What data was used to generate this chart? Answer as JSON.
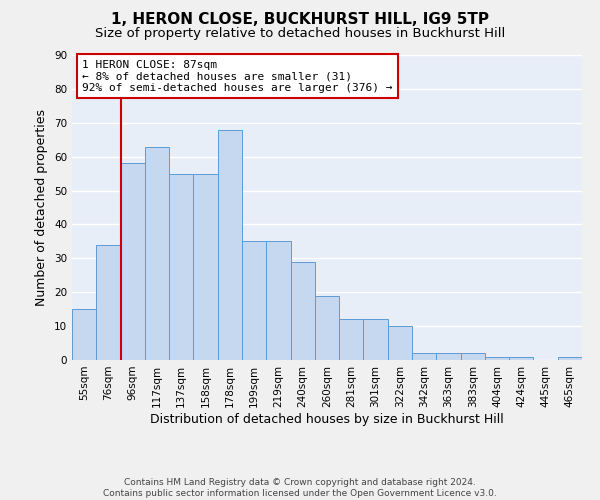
{
  "title1": "1, HERON CLOSE, BUCKHURST HILL, IG9 5TP",
  "title2": "Size of property relative to detached houses in Buckhurst Hill",
  "xlabel": "Distribution of detached houses by size in Buckhurst Hill",
  "ylabel": "Number of detached properties",
  "categories": [
    "55sqm",
    "76sqm",
    "96sqm",
    "117sqm",
    "137sqm",
    "158sqm",
    "178sqm",
    "199sqm",
    "219sqm",
    "240sqm",
    "260sqm",
    "281sqm",
    "301sqm",
    "322sqm",
    "342sqm",
    "363sqm",
    "383sqm",
    "404sqm",
    "424sqm",
    "445sqm",
    "465sqm"
  ],
  "values": [
    15,
    34,
    58,
    63,
    55,
    55,
    68,
    35,
    35,
    29,
    19,
    12,
    12,
    10,
    2,
    2,
    2,
    1,
    1,
    0,
    1
  ],
  "bar_color": "#c5d8f0",
  "bar_edge_color": "#5b9bd5",
  "plot_bg_color": "#e8eef8",
  "fig_bg_color": "#f0f0f0",
  "grid_color": "#ffffff",
  "vline_color": "#cc0000",
  "annotation_line1": "1 HERON CLOSE: 87sqm",
  "annotation_line2": "← 8% of detached houses are smaller (31)",
  "annotation_line3": "92% of semi-detached houses are larger (376) →",
  "annotation_box_color": "#ffffff",
  "annotation_box_edge": "#cc0000",
  "footer_text": "Contains HM Land Registry data © Crown copyright and database right 2024.\nContains public sector information licensed under the Open Government Licence v3.0.",
  "ylim": [
    0,
    90
  ],
  "yticks": [
    0,
    10,
    20,
    30,
    40,
    50,
    60,
    70,
    80,
    90
  ],
  "title1_fontsize": 11,
  "title2_fontsize": 9.5,
  "xlabel_fontsize": 9,
  "ylabel_fontsize": 9,
  "tick_fontsize": 7.5,
  "annotation_fontsize": 8,
  "footer_fontsize": 6.5
}
